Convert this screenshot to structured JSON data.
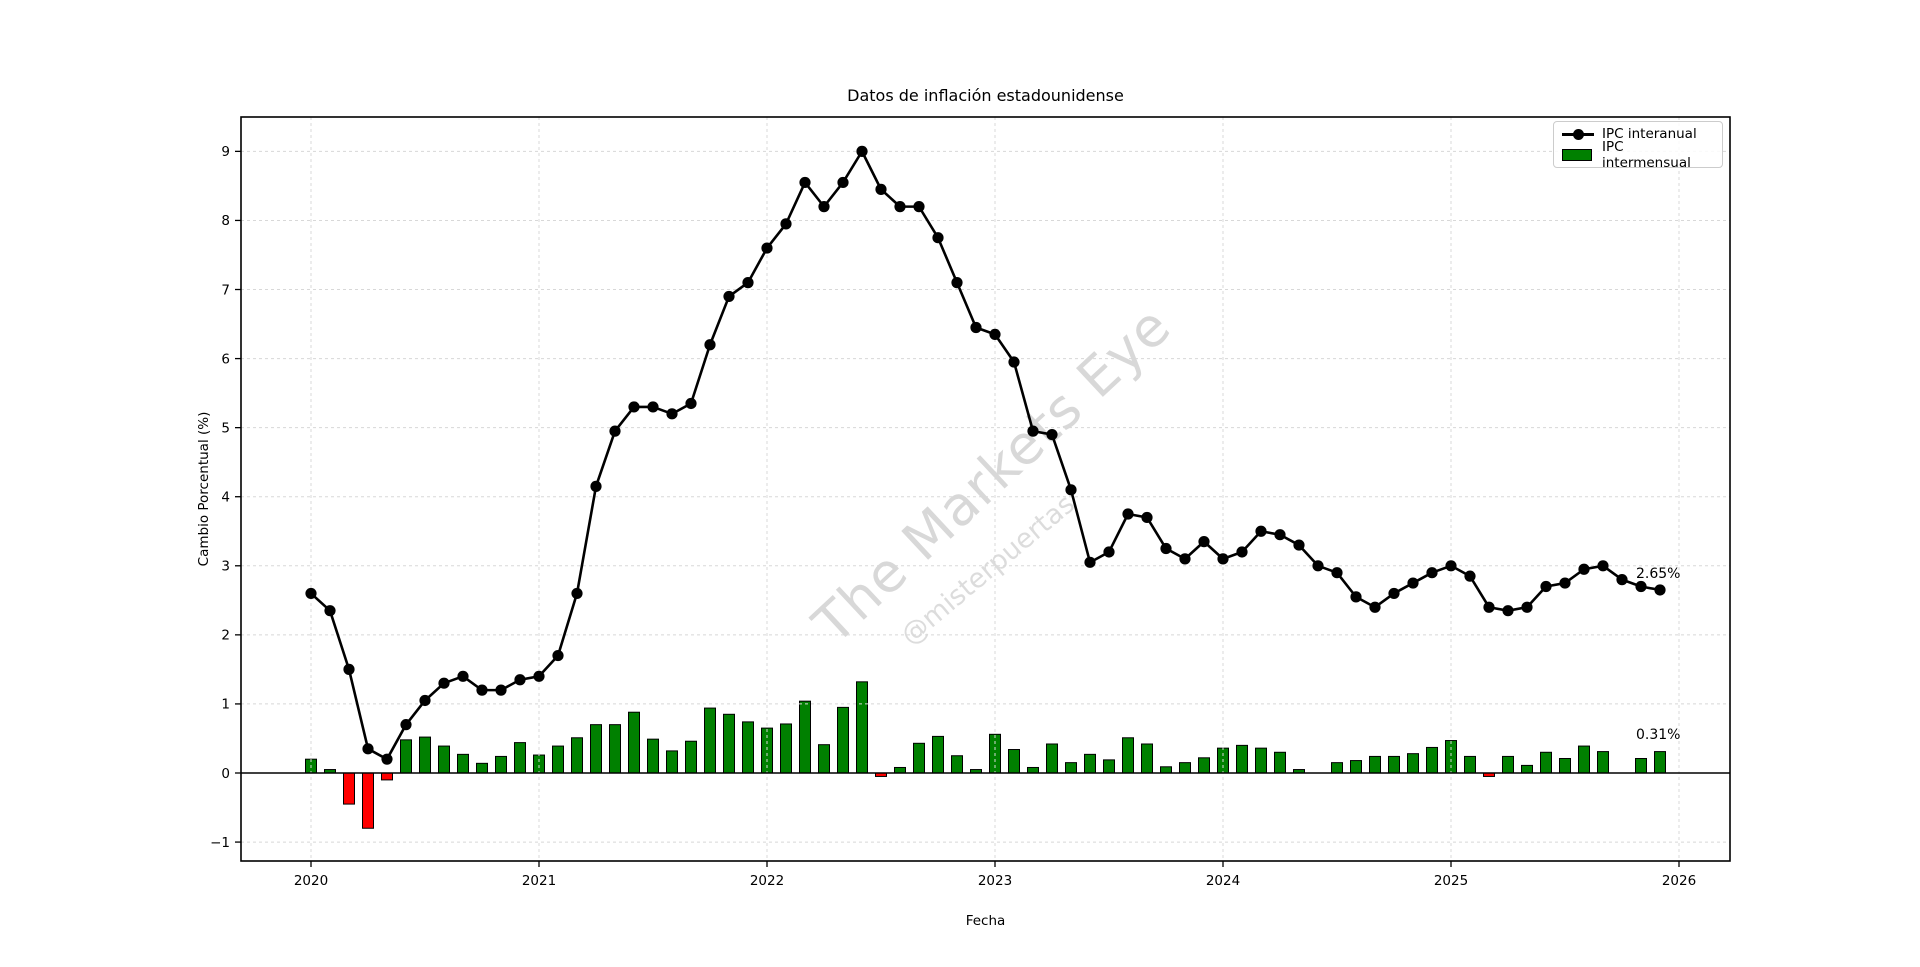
{
  "watermark": {
    "brand": "The Markets Eye",
    "handle": "@misterpuertas"
  },
  "chart_data": {
    "type": "line+bar",
    "title": "Datos de inflación estadounidense",
    "xlabel": "Fecha",
    "ylabel": "Cambio Porcentual (%)",
    "grid": true,
    "legend_position": "upper right",
    "x_freq": "monthly",
    "x_tick_labels": [
      "2020",
      "2021",
      "2022",
      "2023",
      "2024",
      "2025",
      "2026"
    ],
    "y_ticks": [
      -1,
      0,
      1,
      2,
      3,
      4,
      5,
      6,
      7,
      8,
      9
    ],
    "y_tick_labels": [
      "−1",
      "0",
      "1",
      "2",
      "3",
      "4",
      "5",
      "6",
      "7",
      "8",
      "9"
    ],
    "ylim": [
      -1.28,
      9.49
    ],
    "x_months": [
      "2020-01",
      "2020-02",
      "2020-03",
      "2020-04",
      "2020-05",
      "2020-06",
      "2020-07",
      "2020-08",
      "2020-09",
      "2020-10",
      "2020-11",
      "2020-12",
      "2021-01",
      "2021-02",
      "2021-03",
      "2021-04",
      "2021-05",
      "2021-06",
      "2021-07",
      "2021-08",
      "2021-09",
      "2021-10",
      "2021-11",
      "2021-12",
      "2022-01",
      "2022-02",
      "2022-03",
      "2022-04",
      "2022-05",
      "2022-06",
      "2022-07",
      "2022-08",
      "2022-09",
      "2022-10",
      "2022-11",
      "2022-12",
      "2023-01",
      "2023-02",
      "2023-03",
      "2023-04",
      "2023-05",
      "2023-06",
      "2023-07",
      "2023-08",
      "2023-09",
      "2023-10",
      "2023-11",
      "2023-12",
      "2024-01",
      "2024-02",
      "2024-03",
      "2024-04",
      "2024-05",
      "2024-06",
      "2024-07",
      "2024-08",
      "2024-09",
      "2024-10",
      "2024-11",
      "2024-12",
      "2025-01",
      "2025-02",
      "2025-03",
      "2025-04",
      "2025-05",
      "2025-06",
      "2025-07",
      "2025-08",
      "2025-09",
      "2025-10",
      "2025-11",
      "2025-12"
    ],
    "series": [
      {
        "name": "IPC interanual",
        "type": "line",
        "color": "#000000",
        "marker": "circle",
        "values": [
          2.6,
          2.35,
          1.5,
          0.35,
          0.2,
          0.7,
          1.05,
          1.3,
          1.4,
          1.2,
          1.2,
          1.35,
          1.4,
          1.7,
          2.6,
          4.15,
          4.95,
          5.3,
          5.3,
          5.2,
          5.35,
          6.2,
          6.9,
          7.1,
          7.6,
          7.95,
          8.55,
          8.2,
          8.55,
          9.0,
          8.45,
          8.2,
          8.2,
          7.75,
          7.1,
          6.45,
          6.35,
          5.95,
          4.95,
          4.9,
          4.1,
          3.05,
          3.2,
          3.75,
          3.7,
          3.25,
          3.1,
          3.35,
          3.1,
          3.2,
          3.5,
          3.45,
          3.3,
          3.0,
          2.9,
          2.55,
          2.4,
          2.6,
          2.75,
          2.9,
          3.0,
          2.85,
          2.4,
          2.35,
          2.4,
          2.7,
          2.75,
          2.95,
          3.0,
          2.8,
          2.7,
          2.65
        ]
      },
      {
        "name": "IPC intermensual",
        "type": "bar",
        "color_positive": "#008000",
        "color_negative": "#ff0000",
        "values": [
          0.2,
          0.05,
          -0.45,
          -0.8,
          -0.1,
          0.48,
          0.52,
          0.39,
          0.27,
          0.14,
          0.24,
          0.44,
          0.26,
          0.39,
          0.51,
          0.7,
          0.7,
          0.88,
          0.49,
          0.32,
          0.46,
          0.94,
          0.85,
          0.74,
          0.65,
          0.71,
          1.04,
          0.41,
          0.95,
          1.32,
          -0.05,
          0.08,
          0.43,
          0.53,
          0.25,
          0.05,
          0.56,
          0.34,
          0.08,
          0.42,
          0.15,
          0.27,
          0.19,
          0.51,
          0.42,
          0.09,
          0.15,
          0.22,
          0.36,
          0.4,
          0.36,
          0.3,
          0.05,
          0.0,
          0.15,
          0.18,
          0.24,
          0.24,
          0.28,
          0.37,
          0.47,
          0.24,
          -0.05,
          0.24,
          0.11,
          0.3,
          0.21,
          0.39,
          0.31,
          null,
          0.21,
          0.31
        ]
      }
    ],
    "annotations": [
      {
        "text": "2.65%",
        "series": "IPC interanual",
        "x": "2025-12",
        "y": 2.65
      },
      {
        "text": "0.31%",
        "series": "IPC intermensual",
        "x": "2025-12",
        "y": 0.31
      }
    ]
  }
}
